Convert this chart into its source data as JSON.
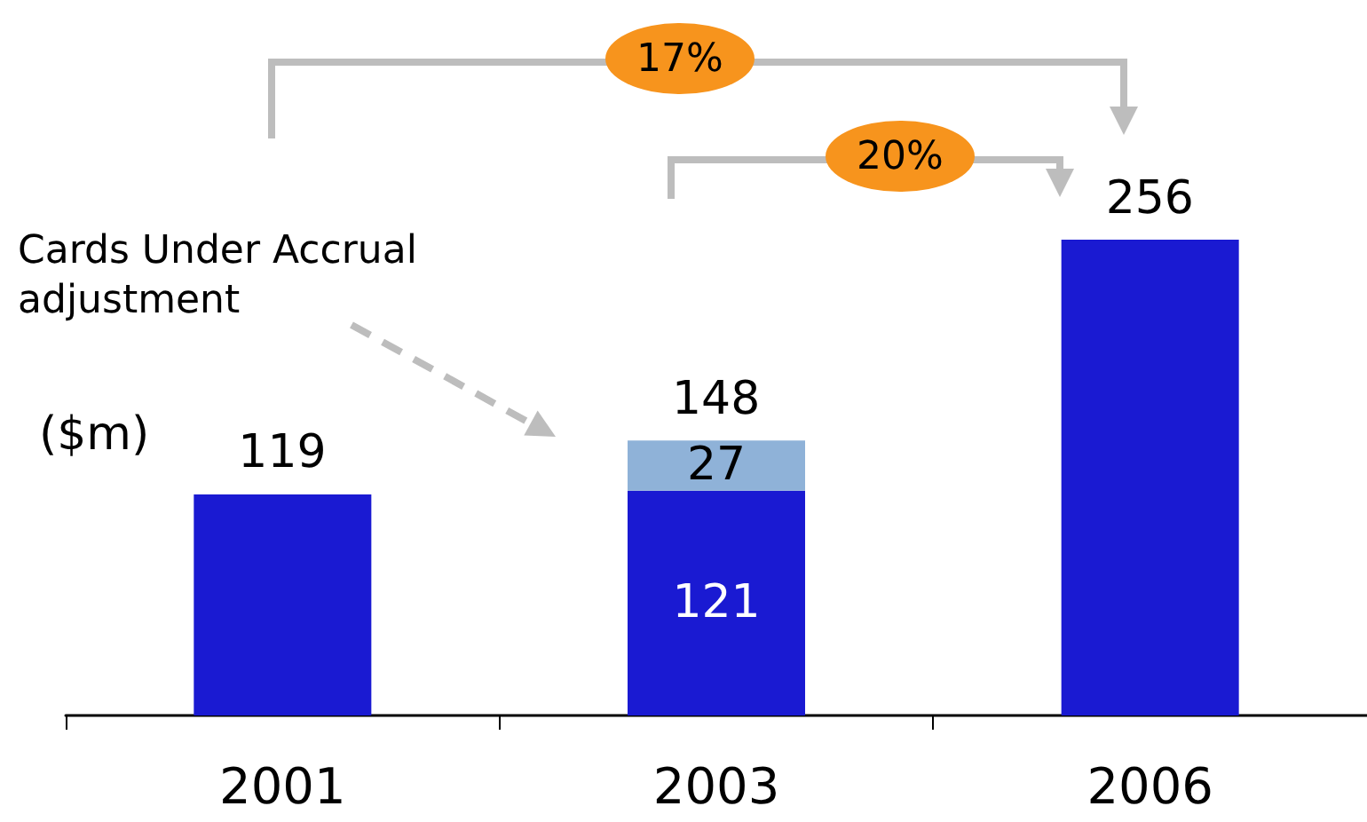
{
  "chart_data": {
    "type": "bar",
    "stacked": true,
    "categories": [
      "2001",
      "2003",
      "2006"
    ],
    "series": [
      {
        "color": "#1a1ad2",
        "values": [
          119,
          121,
          256
        ],
        "value_labels": [
          null,
          "121",
          null
        ]
      },
      {
        "color": "#8fb2d8",
        "values": [
          null,
          27,
          null
        ],
        "value_labels": [
          null,
          "27",
          null
        ]
      }
    ],
    "totals": [
      "119",
      "148",
      "256"
    ],
    "annotations": [
      "17%",
      "20%",
      "Cards Under Accrual adjustment",
      "($m)"
    ],
    "tick_labels": "x"
  }
}
